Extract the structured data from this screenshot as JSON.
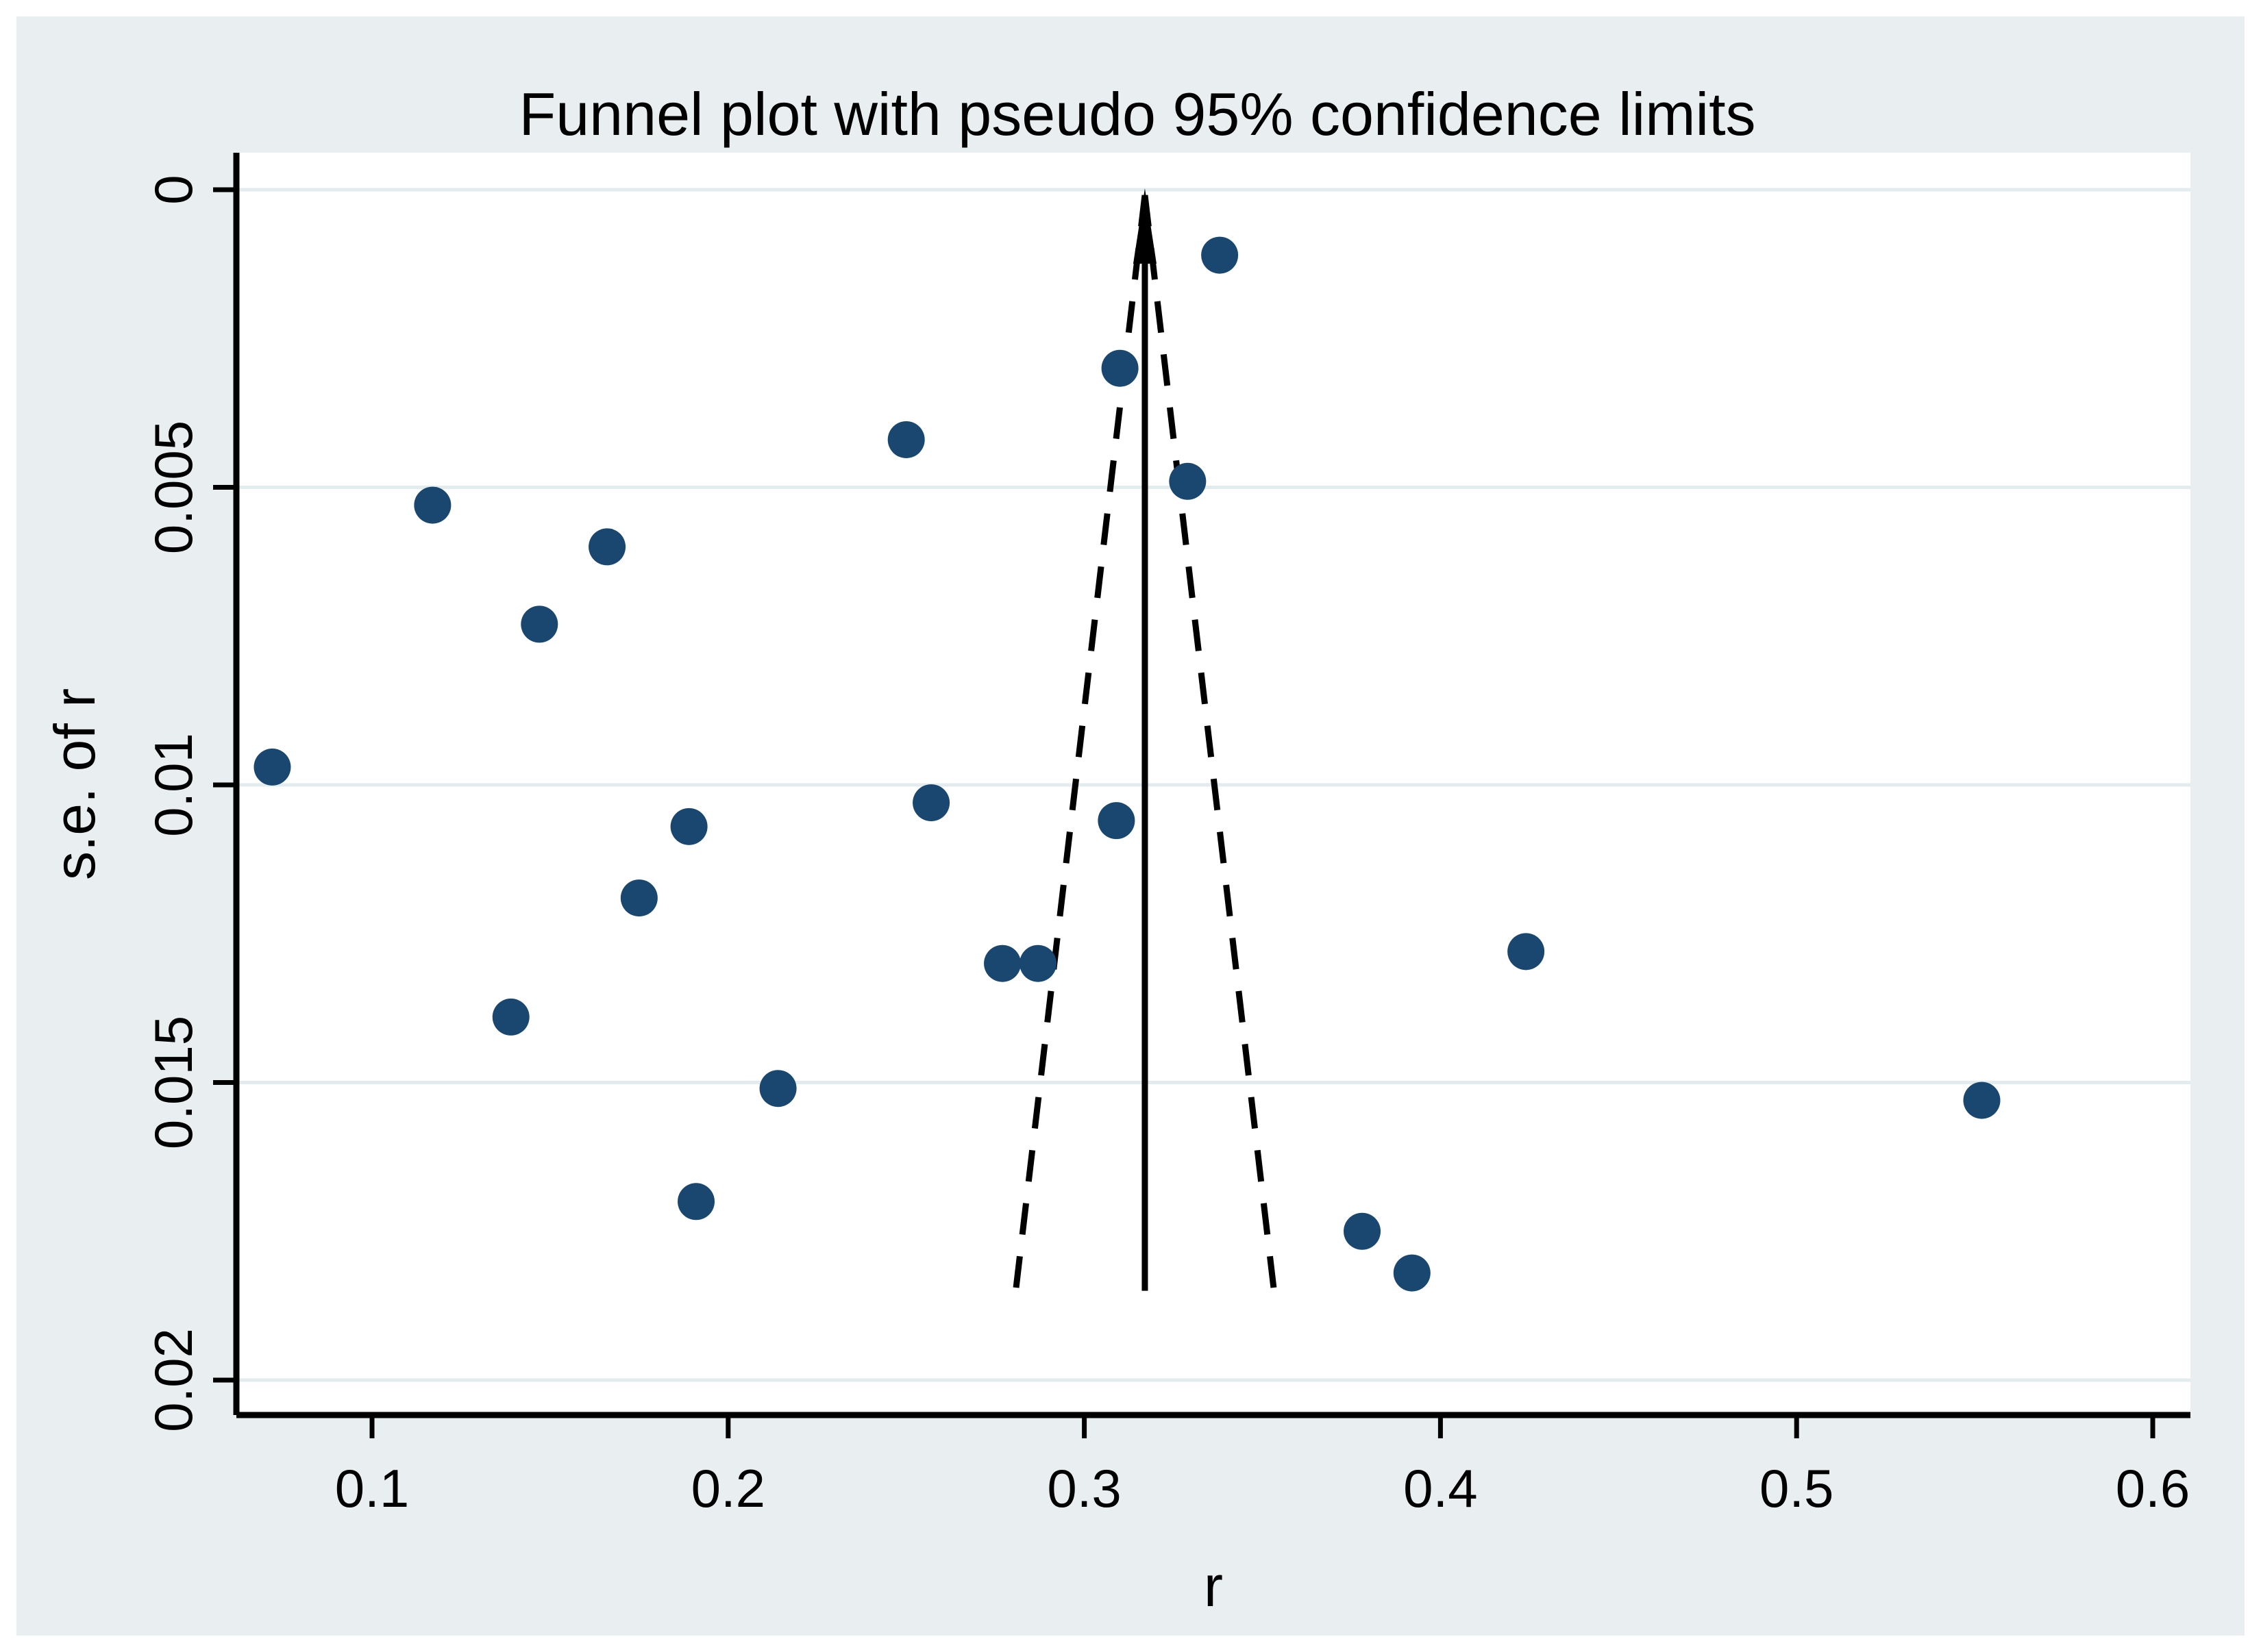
{
  "title": "Funnel plot with pseudo 95% confidence limits",
  "colors": {
    "background": "#E9EFF1",
    "plot_background": "#FFFFFF",
    "gridline": "#E2ECEF",
    "axis": "#000000",
    "marker": "#1A476F",
    "funnel_line": "#000000",
    "text": "#000000"
  },
  "chart_data": {
    "type": "scatter",
    "title": "Funnel plot with pseudo 95% confidence limits",
    "xlabel": "r",
    "ylabel": "s.e. of r",
    "x_ticks": [
      0.1,
      0.2,
      0.3,
      0.4,
      0.5,
      0.6
    ],
    "x_tick_labels": [
      "0.1",
      "0.2",
      "0.3",
      "0.4",
      "0.5",
      "0.6"
    ],
    "y_ticks": [
      0,
      0.005,
      0.01,
      0.015,
      0.02
    ],
    "y_tick_labels": [
      "0",
      "0.005",
      "0.01",
      "0.015",
      "0.02"
    ],
    "xlim": [
      0.062,
      0.611
    ],
    "ylim": [
      0,
      0.0206
    ],
    "y_axis_reversed": true,
    "grid": true,
    "legend": false,
    "pooled_r": 0.317,
    "ci_multiplier": 1.96,
    "funnel_se_max": 0.0185,
    "points": [
      {
        "r": 0.072,
        "se": 0.0097
      },
      {
        "r": 0.117,
        "se": 0.0053
      },
      {
        "r": 0.147,
        "se": 0.0073
      },
      {
        "r": 0.166,
        "se": 0.006
      },
      {
        "r": 0.139,
        "se": 0.0139
      },
      {
        "r": 0.175,
        "se": 0.0119
      },
      {
        "r": 0.189,
        "se": 0.0107
      },
      {
        "r": 0.191,
        "se": 0.017
      },
      {
        "r": 0.214,
        "se": 0.0151
      },
      {
        "r": 0.25,
        "se": 0.0042
      },
      {
        "r": 0.257,
        "se": 0.0103
      },
      {
        "r": 0.277,
        "se": 0.013
      },
      {
        "r": 0.287,
        "se": 0.013
      },
      {
        "r": 0.309,
        "se": 0.0106
      },
      {
        "r": 0.31,
        "se": 0.003
      },
      {
        "r": 0.329,
        "se": 0.0049
      },
      {
        "r": 0.338,
        "se": 0.0011
      },
      {
        "r": 0.378,
        "se": 0.0175
      },
      {
        "r": 0.392,
        "se": 0.0182
      },
      {
        "r": 0.424,
        "se": 0.0128
      },
      {
        "r": 0.552,
        "se": 0.0153
      }
    ]
  }
}
